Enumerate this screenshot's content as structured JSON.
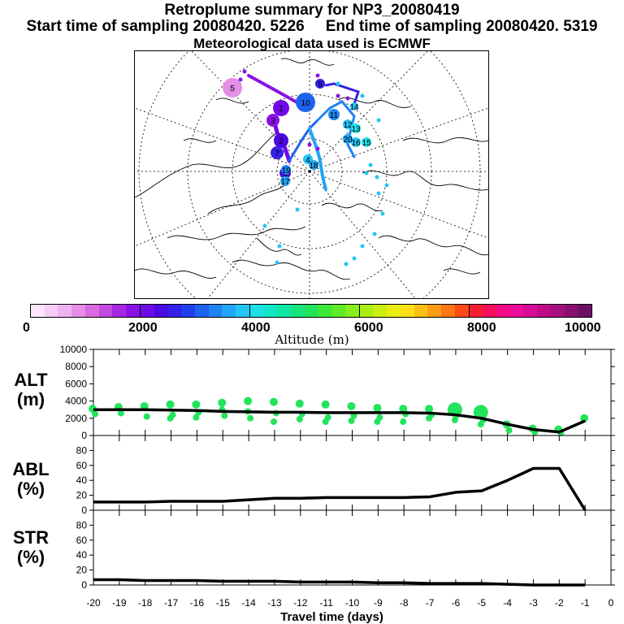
{
  "header": {
    "title": "Retroplume summary for NP3_20080419",
    "start_label": "Start time of sampling 20080420.  5226",
    "end_label": "End time of sampling 20080420.  5319",
    "met_label": "Meteorological data used is ECMWF"
  },
  "colorbar": {
    "title": "Altitude (m)",
    "ticks": [
      "0",
      "2000",
      "4000",
      "6000",
      "8000",
      "10000"
    ],
    "colors": [
      "#fbe6fb",
      "#f5cdf5",
      "#eeb2ee",
      "#e48ee6",
      "#d86ae0",
      "#c348e0",
      "#a626e2",
      "#8a12e4",
      "#6f0ae6",
      "#4c08e0",
      "#3420e8",
      "#2040ee",
      "#1e62f0",
      "#1e84f2",
      "#20a6f4",
      "#22c6f4",
      "#1ee0e8",
      "#12e6c6",
      "#10e6a2",
      "#18e47c",
      "#22e45a",
      "#3ce83a",
      "#5cec28",
      "#86ee1c",
      "#aaee12",
      "#ccee10",
      "#eaee10",
      "#fae014",
      "#fcc014",
      "#fc9c14",
      "#fc7614",
      "#fc4a18",
      "#f81e30",
      "#f6105a",
      "#f40a86",
      "#ec0a9c",
      "#d80a98",
      "#c00a88",
      "#a4107c",
      "#8a1070",
      "#6e1068"
    ]
  },
  "map": {
    "trajectory_labels": [
      "1",
      "2",
      "3",
      "4",
      "5",
      "6",
      "7",
      "8",
      "9",
      "10",
      "11",
      "12",
      "13",
      "14",
      "15",
      "16",
      "17",
      "18",
      "19",
      "20"
    ]
  },
  "chart_data": [
    {
      "type": "line",
      "panel": "ALT",
      "ylabel": "ALT (m)",
      "xlabel": "Travel time (days)",
      "ylim": [
        0,
        10000
      ],
      "yticks": [
        0,
        2000,
        4000,
        6000,
        8000,
        10000
      ],
      "xlim": [
        -20,
        0
      ],
      "xticks": [
        -20,
        -19,
        -18,
        -17,
        -16,
        -15,
        -14,
        -13,
        -12,
        -11,
        -10,
        -9,
        -8,
        -7,
        -6,
        -5,
        -4,
        -3,
        -2,
        -1,
        0
      ],
      "x": [
        -20,
        -19,
        -18,
        -17,
        -16,
        -15,
        -14,
        -13,
        -12,
        -11,
        -10,
        -9,
        -8,
        -7,
        -6,
        -5,
        -4,
        -3,
        -2,
        -1
      ],
      "values": [
        3000,
        3000,
        3000,
        2950,
        2900,
        2800,
        2750,
        2700,
        2700,
        2650,
        2650,
        2650,
        2650,
        2600,
        2400,
        2000,
        1300,
        700,
        400,
        1700
      ],
      "clusters": [
        {
          "x": -20,
          "y": [
            3100,
            2500
          ]
        },
        {
          "x": -19,
          "y": [
            3300,
            2600
          ]
        },
        {
          "x": -18,
          "y": [
            3400,
            2200
          ]
        },
        {
          "x": -17,
          "y": [
            3600,
            2400,
            2000
          ]
        },
        {
          "x": -16,
          "y": [
            3600,
            2700,
            2100
          ]
        },
        {
          "x": -15,
          "y": [
            3800,
            2300,
            3000
          ]
        },
        {
          "x": -14,
          "y": [
            4000,
            2000,
            2800
          ]
        },
        {
          "x": -13,
          "y": [
            3900,
            2600,
            1600
          ]
        },
        {
          "x": -12,
          "y": [
            3700,
            2500,
            1900
          ]
        },
        {
          "x": -11,
          "y": [
            3600,
            2100,
            1600
          ]
        },
        {
          "x": -10,
          "y": [
            3400,
            2300,
            1700
          ]
        },
        {
          "x": -9,
          "y": [
            3200,
            2100,
            1600
          ]
        },
        {
          "x": -8,
          "y": [
            3100,
            2500,
            1600
          ]
        },
        {
          "x": -7,
          "y": [
            3100,
            2400,
            2000
          ]
        },
        {
          "x": -6,
          "y": [
            3000,
            2400,
            1800
          ]
        },
        {
          "x": -5,
          "y": [
            2700,
            1800,
            1300
          ]
        },
        {
          "x": -4,
          "y": [
            1300,
            600
          ]
        },
        {
          "x": -3,
          "y": [
            800,
            400
          ]
        },
        {
          "x": -2,
          "y": [
            700,
            300
          ]
        },
        {
          "x": -1,
          "y": [
            2000
          ]
        }
      ]
    },
    {
      "type": "line",
      "panel": "ABL",
      "ylabel": "ABL (%)",
      "xlabel": "Travel time (days)",
      "ylim": [
        0,
        100
      ],
      "yticks": [
        0,
        20,
        40,
        60,
        80
      ],
      "xlim": [
        -20,
        0
      ],
      "x": [
        -20,
        -19,
        -18,
        -17,
        -16,
        -15,
        -14,
        -13,
        -12,
        -11,
        -10,
        -9,
        -8,
        -7,
        -6,
        -5,
        -4,
        -3,
        -2,
        -1
      ],
      "values": [
        11,
        11,
        11,
        12,
        12,
        12,
        14,
        16,
        16,
        17,
        17,
        17,
        17,
        18,
        24,
        26,
        40,
        56,
        56,
        0
      ]
    },
    {
      "type": "line",
      "panel": "STR",
      "ylabel": "STR (%)",
      "xlabel": "Travel time (days)",
      "ylim": [
        0,
        100
      ],
      "yticks": [
        0,
        20,
        40,
        60,
        80
      ],
      "xlim": [
        -20,
        0
      ],
      "x": [
        -20,
        -19,
        -18,
        -17,
        -16,
        -15,
        -14,
        -13,
        -12,
        -11,
        -10,
        -9,
        -8,
        -7,
        -6,
        -5,
        -4,
        -3,
        -2,
        -1
      ],
      "values": [
        7,
        7,
        6,
        6,
        6,
        5,
        5,
        5,
        4,
        4,
        4,
        3,
        3,
        2,
        2,
        2,
        1,
        0,
        0,
        0
      ]
    }
  ]
}
